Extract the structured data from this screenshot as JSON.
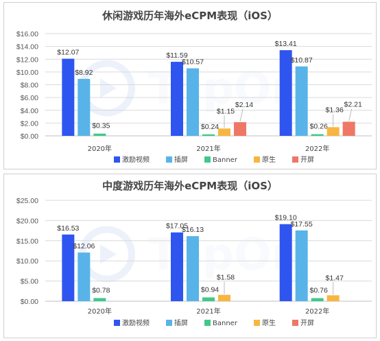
{
  "watermark": {
    "text": "TopOn"
  },
  "colors": {
    "激励视频": "#2f55f0",
    "插屏": "#58b4e8",
    "Banner": "#3ec98b",
    "原生": "#f7b642",
    "开屏": "#ee7766",
    "grid": "#d9d9d9",
    "axis": "#bfbfbf"
  },
  "chart_data": [
    {
      "type": "bar",
      "title": "休闲游戏历年海外eCPM表现（iOS）",
      "categories": [
        "2020年",
        "2021年",
        "2022年"
      ],
      "series": [
        {
          "name": "激励视频",
          "values": [
            12.07,
            11.59,
            13.41
          ],
          "labels": [
            "$12.07",
            "$11.59",
            "$13.41"
          ]
        },
        {
          "name": "插屏",
          "values": [
            8.92,
            10.57,
            10.87
          ],
          "labels": [
            "$8.92",
            "$10.57",
            "$10.87"
          ]
        },
        {
          "name": "Banner",
          "values": [
            0.35,
            0.24,
            0.26
          ],
          "labels": [
            "$0.35",
            "$0.24",
            "$0.26"
          ]
        },
        {
          "name": "原生",
          "values": [
            null,
            1.15,
            1.36
          ],
          "labels": [
            "",
            "$1.15",
            "$1.36"
          ]
        },
        {
          "name": "开屏",
          "values": [
            null,
            2.14,
            2.21
          ],
          "labels": [
            "",
            "$2.14",
            "$2.21"
          ]
        }
      ],
      "yticks": [
        "$0.00",
        "$2.00",
        "$4.00",
        "$6.00",
        "$8.00",
        "$10.00",
        "$12.00",
        "$14.00",
        "$16.00"
      ],
      "ylim": [
        0,
        16
      ],
      "grid": true,
      "legend_placement": "bottom"
    },
    {
      "type": "bar",
      "title": "中度游戏历年海外eCPM表现（iOS）",
      "categories": [
        "2020年",
        "2021年",
        "2022年"
      ],
      "series": [
        {
          "name": "激励视频",
          "values": [
            16.53,
            17.05,
            19.1
          ],
          "labels": [
            "$16.53",
            "$17.05",
            "$19.10"
          ]
        },
        {
          "name": "插屏",
          "values": [
            12.06,
            16.13,
            17.55
          ],
          "labels": [
            "$12.06",
            "$16.13",
            "$17.55"
          ]
        },
        {
          "name": "Banner",
          "values": [
            0.78,
            0.94,
            0.76
          ],
          "labels": [
            "$0.78",
            "$0.94",
            "$0.76"
          ]
        },
        {
          "name": "原生",
          "values": [
            null,
            1.58,
            1.47
          ],
          "labels": [
            "",
            "$1.58",
            "$1.47"
          ]
        },
        {
          "name": "开屏",
          "values": [
            null,
            null,
            null
          ],
          "labels": [
            "",
            "",
            ""
          ]
        }
      ],
      "yticks": [
        "$0.00",
        "$5.00",
        "$10.00",
        "$15.00",
        "$20.00",
        "$25.00"
      ],
      "ylim": [
        0,
        25
      ],
      "grid": true,
      "legend_placement": "bottom"
    }
  ]
}
